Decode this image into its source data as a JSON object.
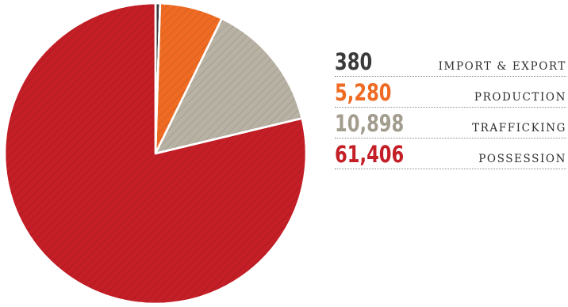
{
  "chart_data": {
    "type": "pie",
    "slices": [
      {
        "label": "POSSESSION",
        "value": 61406,
        "display": "61,406",
        "color": "#c41e26"
      },
      {
        "label": "TRAFFICKING",
        "value": 10898,
        "display": "10,898",
        "color": "#b8b2a4"
      },
      {
        "label": "PRODUCTION",
        "value": 5280,
        "display": "5,280",
        "color": "#ef6b23"
      },
      {
        "label": "IMPORT & EXPORT",
        "value": 380,
        "display": "380",
        "color": "#3b3b3b"
      }
    ],
    "legend_order": [
      "IMPORT & EXPORT",
      "PRODUCTION",
      "TRAFFICKING",
      "POSSESSION"
    ],
    "legend_placement": "right"
  }
}
